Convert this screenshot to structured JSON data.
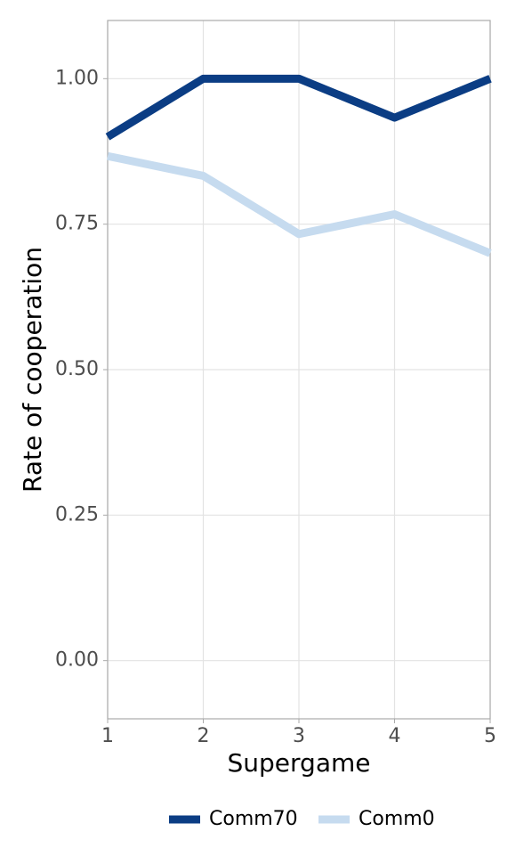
{
  "chart_data": {
    "type": "line",
    "x_label": "Supergame",
    "y_label": "Rate of cooperation",
    "x": [
      1,
      2,
      3,
      4,
      5
    ],
    "series": [
      {
        "name": "Comm70",
        "color": "#0b3d84",
        "values": [
          0.9,
          1.0,
          1.0,
          0.933,
          1.0
        ]
      },
      {
        "name": "Comm0",
        "color": "#c6dbef",
        "values": [
          0.867,
          0.833,
          0.733,
          0.767,
          0.7
        ]
      }
    ],
    "xlim": [
      1,
      5
    ],
    "xticks": [
      1,
      2,
      3,
      4,
      5
    ],
    "ylim": [
      -0.1,
      1.1
    ],
    "yticks": [
      {
        "value": 0,
        "label": "0.00"
      },
      {
        "value": 0.25,
        "label": "0.25"
      },
      {
        "value": 0.5,
        "label": "0.50"
      },
      {
        "value": 0.75,
        "label": "0.75"
      },
      {
        "value": 1,
        "label": "1.00"
      }
    ],
    "grid": true,
    "legend": "bottom"
  }
}
